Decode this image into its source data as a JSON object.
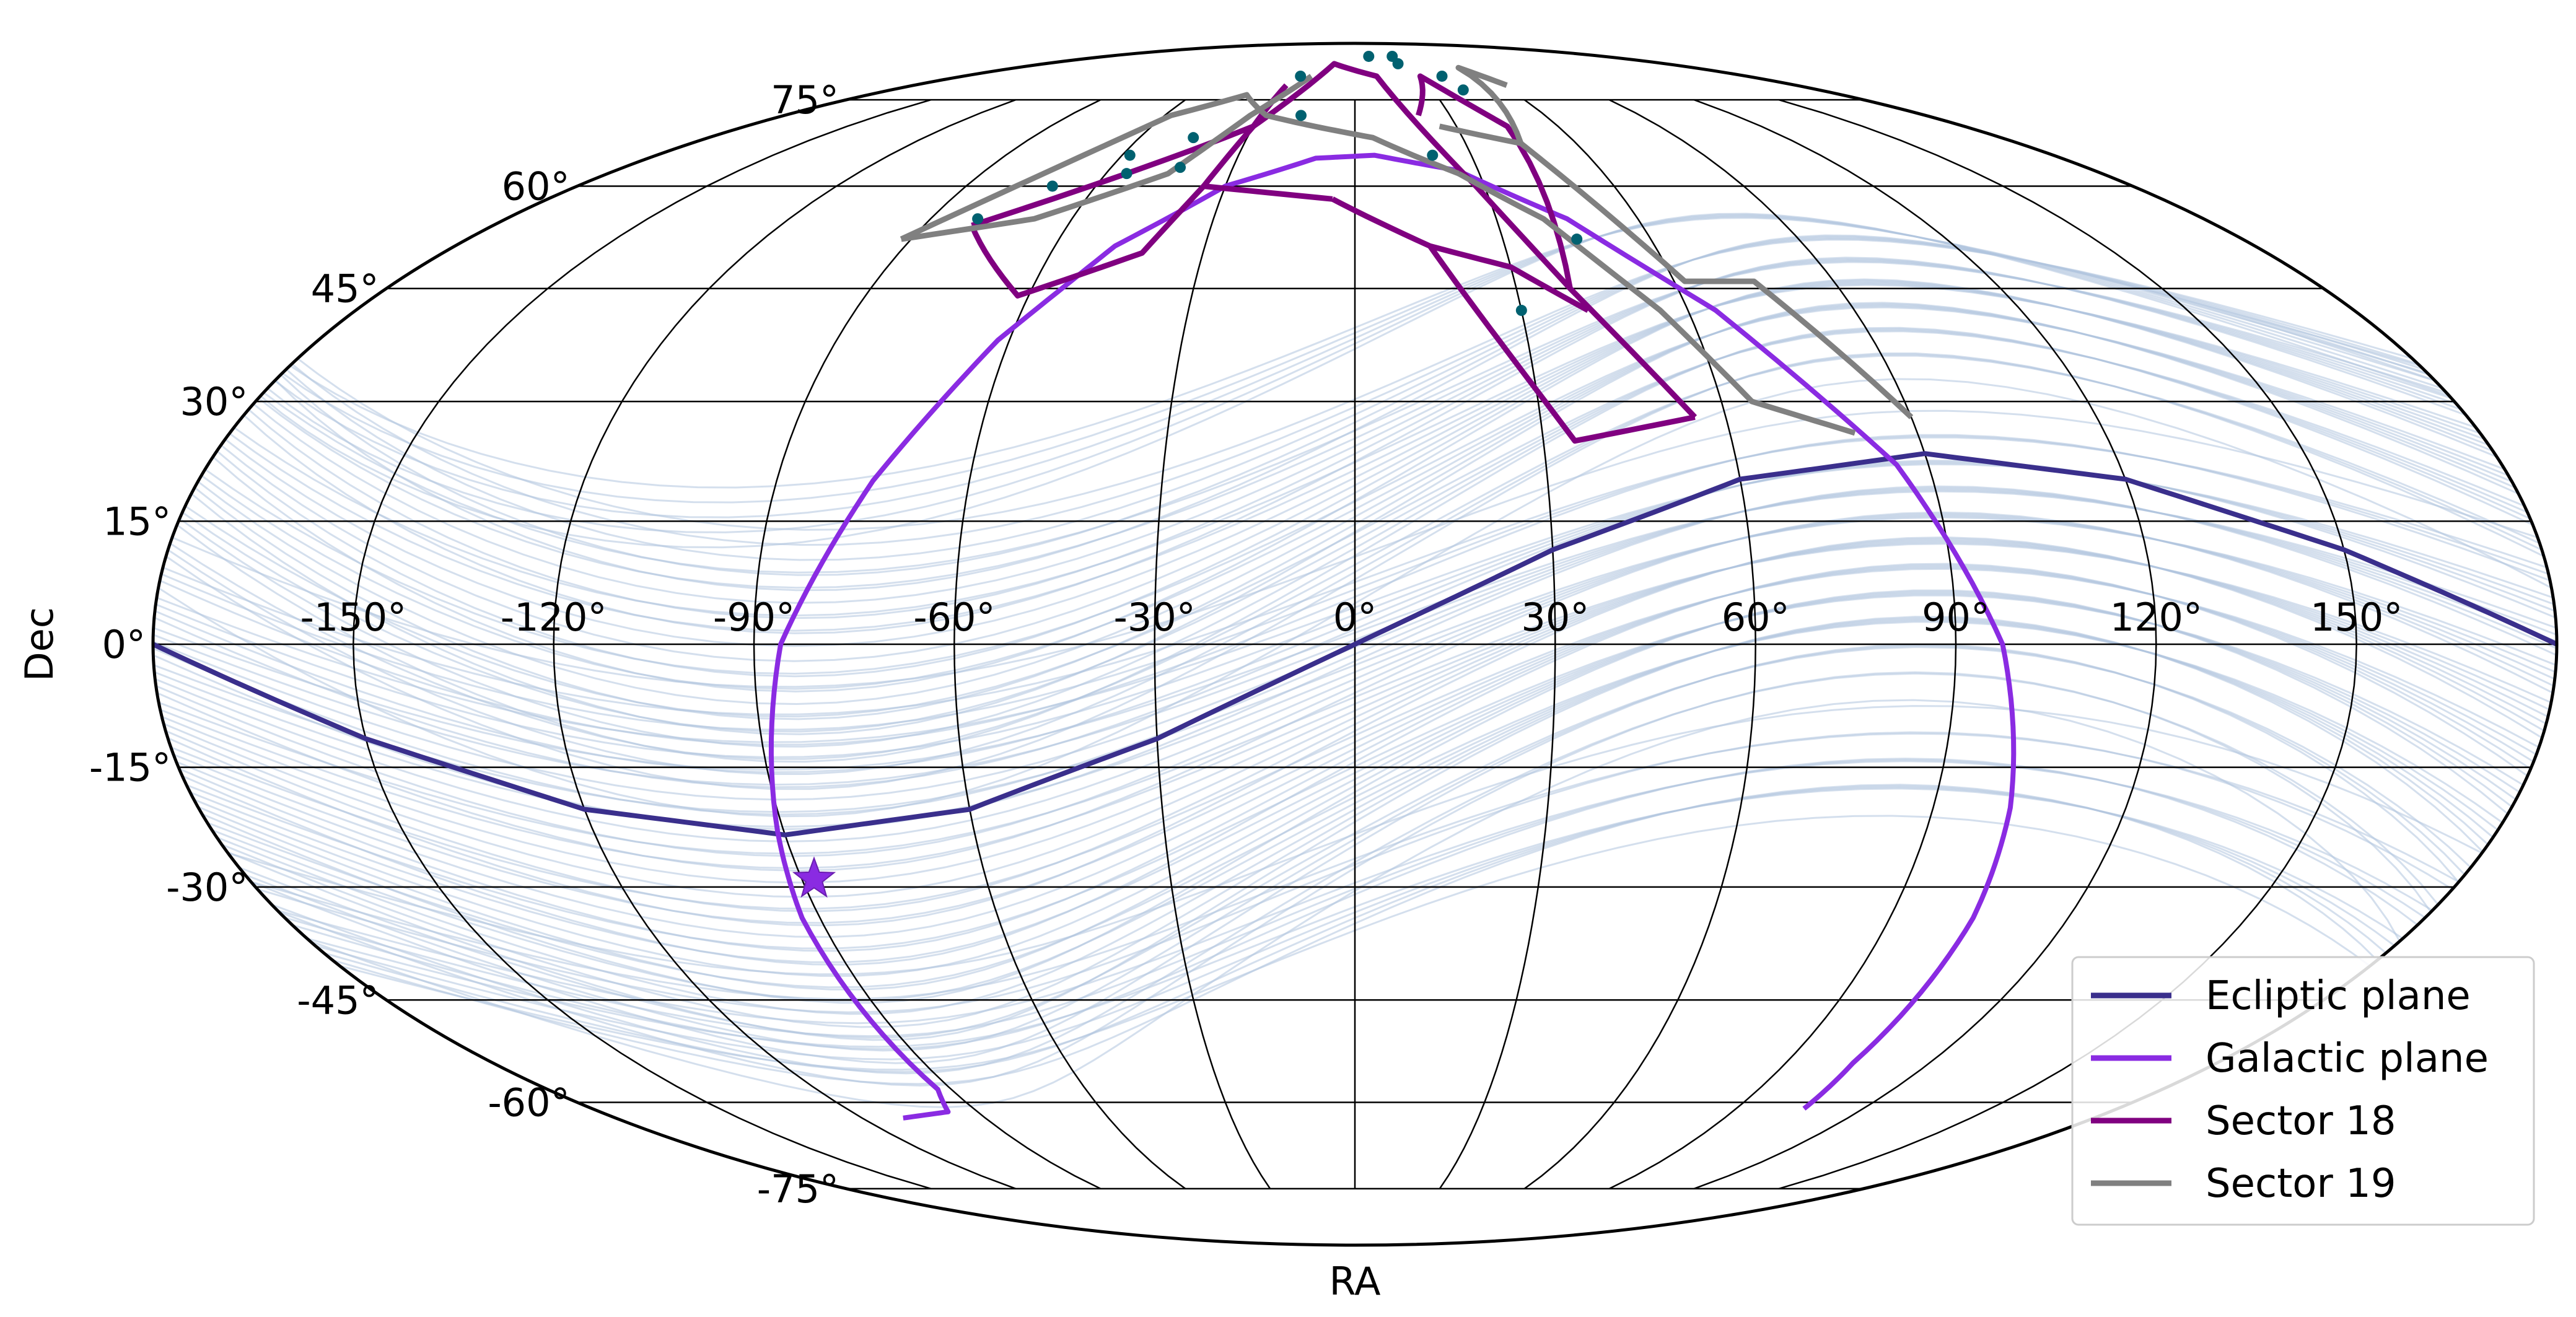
{
  "chart_data": {
    "type": "scatter",
    "projection": "mollweide",
    "title": "",
    "xlabel": "RA",
    "ylabel": "Dec",
    "xlim": [
      -180,
      180
    ],
    "ylim": [
      -90,
      90
    ],
    "grid": true,
    "ra_tick_labels": [
      "-150°",
      "-120°",
      "-90°",
      "-60°",
      "-30°",
      "0°",
      "30°",
      "60°",
      "90°",
      "120°",
      "150°"
    ],
    "dec_tick_labels": [
      "-75°",
      "-60°",
      "-45°",
      "-30°",
      "-15°",
      "0°",
      "15°",
      "30°",
      "45°",
      "60°",
      "75°"
    ],
    "legend": {
      "position": "lower-right",
      "entries": [
        "Ecliptic plane",
        "Galactic plane",
        "Sector 18",
        "Sector 19"
      ]
    },
    "colors": {
      "ecliptic": "#3a2f8c",
      "galactic": "#8a2be2",
      "sector18": "#800080",
      "sector19": "#808080",
      "tracks": "#b0c4de",
      "stars": "#006170"
    },
    "series": [
      {
        "name": "Ecliptic plane",
        "points": [
          [
            -180,
            0
          ],
          [
            -150,
            -11.5
          ],
          [
            -120,
            -20.2
          ],
          [
            -90,
            -23.4
          ],
          [
            -60,
            -20.2
          ],
          [
            -30,
            -11.5
          ],
          [
            0,
            0
          ],
          [
            30,
            11.5
          ],
          [
            60,
            20.2
          ],
          [
            90,
            23.4
          ],
          [
            120,
            20.2
          ],
          [
            150,
            11.5
          ],
          [
            180,
            0
          ]
        ]
      },
      {
        "name": "Galactic plane",
        "points": [
          [
            -110,
            -62.5
          ],
          [
            -97,
            -61.5
          ],
          [
            -93,
            -58
          ],
          [
            -93,
            -34
          ],
          [
            -91,
            -23
          ],
          [
            -86,
            0
          ],
          [
            -75,
            20
          ],
          [
            -62,
            38
          ],
          [
            -48,
            51
          ],
          [
            -30,
            60
          ],
          [
            -10,
            64.5
          ],
          [
            5,
            65
          ],
          [
            25,
            62.5
          ],
          [
            45,
            55
          ],
          [
            65,
            42
          ],
          [
            85,
            22
          ],
          [
            97,
            0
          ],
          [
            102,
            -20
          ],
          [
            104,
            -34
          ],
          [
            104,
            -54
          ],
          [
            106,
            -61
          ]
        ]
      },
      {
        "name": "Sector 18",
        "segments": [
          [
            [
              -80,
              54
            ],
            [
              -30,
              70
            ],
            [
              -12,
              83
            ],
            [
              10,
              80
            ],
            [
              28,
              60
            ],
            [
              40,
              45
            ],
            [
              55,
              28
            ]
          ],
          [
            [
              -80,
              54
            ],
            [
              -62,
              44
            ],
            [
              -42,
              50
            ],
            [
              -35,
              60
            ],
            [
              -5,
              58
            ]
          ],
          [
            [
              -5,
              58
            ],
            [
              15,
              51
            ],
            [
              30,
              48
            ],
            [
              42,
              42
            ]
          ],
          [
            [
              15,
              51
            ],
            [
              25,
              38
            ],
            [
              35,
              25
            ],
            [
              55,
              28
            ]
          ],
          [
            [
              -35,
              60
            ],
            [
              -30,
              70
            ],
            [
              -28,
              78
            ]
          ],
          [
            [
              20,
              72
            ],
            [
              30,
              80
            ],
            [
              45,
              70
            ],
            [
              40,
              45
            ]
          ]
        ]
      },
      {
        "name": "Sector 19",
        "segments": [
          [
            [
              -92,
              52
            ],
            [
              -68,
              55
            ],
            [
              -45,
              62
            ],
            [
              -33,
              72
            ],
            [
              -20,
              80
            ]
          ],
          [
            [
              -92,
              52
            ],
            [
              -58,
              72
            ],
            [
              -40,
              76
            ],
            [
              -28,
              72
            ],
            [
              -12,
              70
            ],
            [
              5,
              68
            ],
            [
              25,
              62
            ]
          ],
          [
            [
              25,
              62
            ],
            [
              40,
              55
            ],
            [
              55,
              42
            ],
            [
              65,
              30
            ],
            [
              80,
              26
            ]
          ],
          [
            [
              25,
              70
            ],
            [
              45,
              67
            ],
            [
              62,
              46
            ],
            [
              75,
              46
            ],
            [
              90,
              28
            ]
          ],
          [
            [
              45,
              67
            ],
            [
              55,
              82
            ],
            [
              62,
              78
            ]
          ]
        ]
      },
      {
        "name": "",
        "marker": "star",
        "points": [
          [
            -88,
            -29
          ]
        ]
      },
      {
        "name": "",
        "marker": "dot",
        "points": [
          [
            -80,
            55
          ],
          [
            -70,
            60
          ],
          [
            -58,
            65
          ],
          [
            -55,
            62
          ],
          [
            -45,
            68
          ],
          [
            -43,
            63
          ],
          [
            -25,
            80
          ],
          [
            -17,
            72
          ],
          [
            10,
            85
          ],
          [
            20,
            65
          ],
          [
            25,
            83
          ],
          [
            27,
            85
          ],
          [
            40,
            80
          ],
          [
            42,
            77
          ],
          [
            45,
            52
          ],
          [
            30,
            42
          ]
        ]
      }
    ],
    "background_tracks": {
      "description_count": 90
    }
  }
}
